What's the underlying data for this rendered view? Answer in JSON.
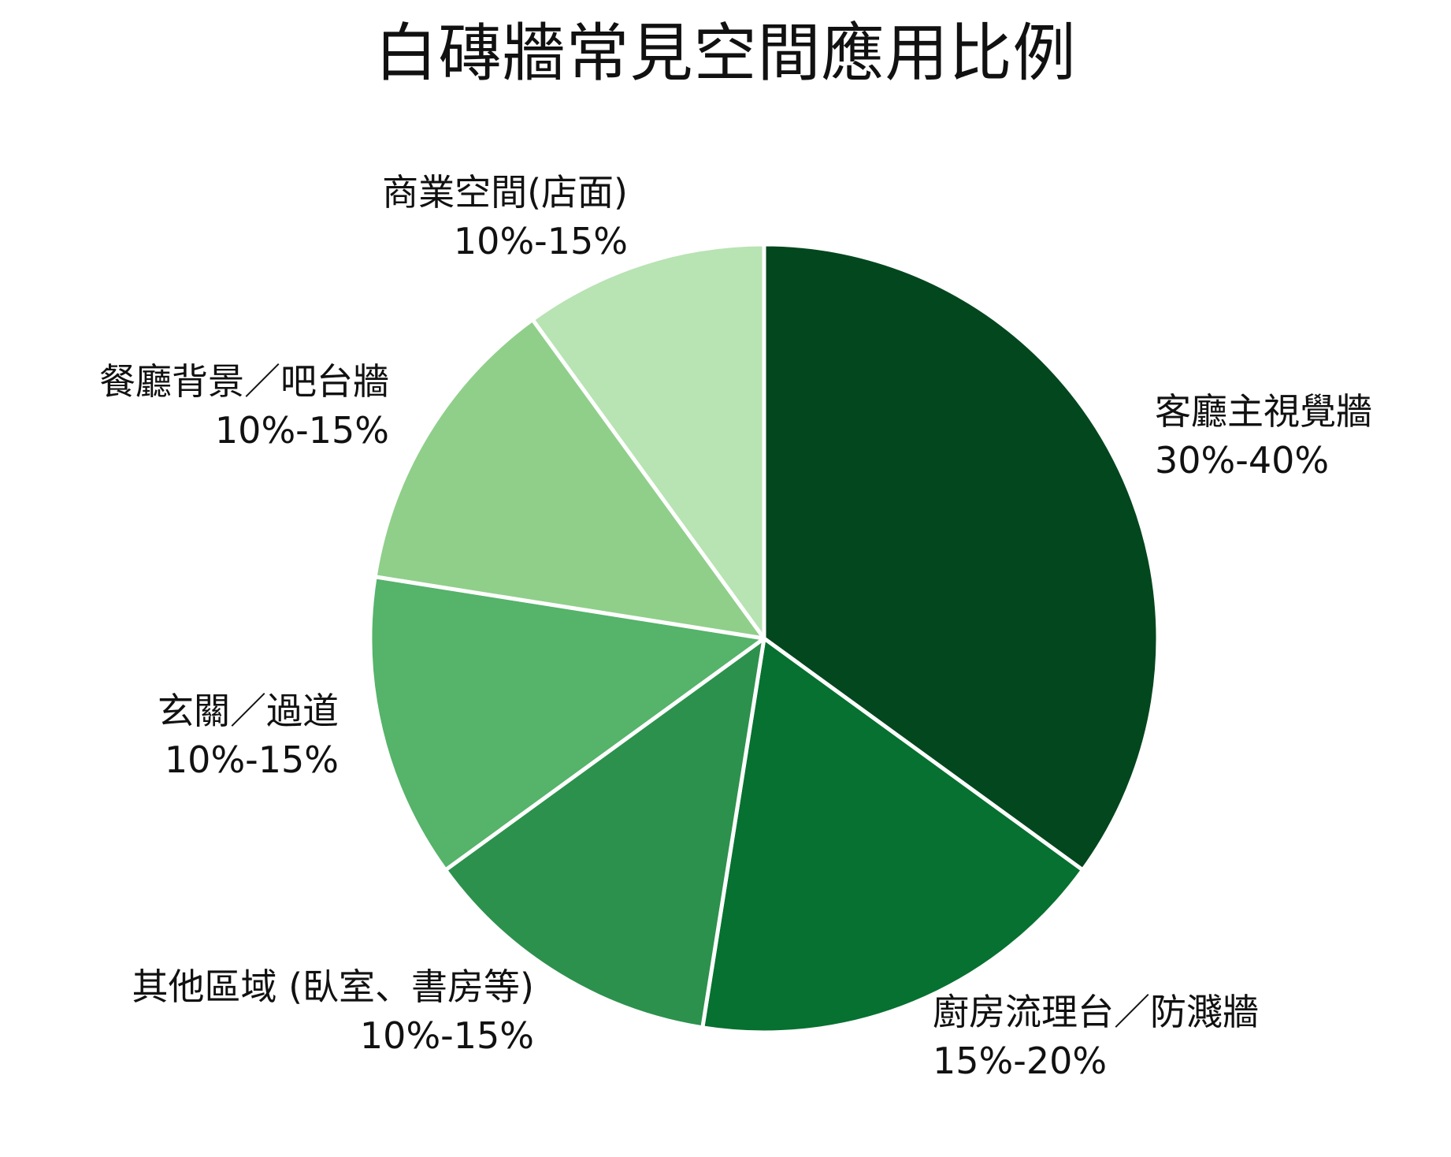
{
  "chart_data": {
    "type": "pie",
    "title": "白磚牆常見空間應用比例",
    "slices": [
      {
        "name": "客廳主視覺牆",
        "range_label": "30%-40%",
        "value": 35,
        "color": "#03471e"
      },
      {
        "name": "廚房流理台／防濺牆",
        "range_label": "15%-20%",
        "value": 17.5,
        "color": "#067130"
      },
      {
        "name": "其他區域 (臥室、書房等)",
        "range_label": "10%-15%",
        "value": 12.5,
        "color": "#2c914c"
      },
      {
        "name": "玄關／過道",
        "range_label": "10%-15%",
        "value": 12.5,
        "color": "#55b36a"
      },
      {
        "name": "餐廳背景／吧台牆",
        "range_label": "10%-15%",
        "value": 12.5,
        "color": "#8fcf8a"
      },
      {
        "name": "商業空間(店面)",
        "range_label": "10%-15%",
        "value": 10,
        "color": "#b8e3b3"
      }
    ],
    "start_angle": "12 o'clock",
    "direction": "clockwise",
    "slice_border_color": "#ffffff",
    "legend": "none"
  }
}
